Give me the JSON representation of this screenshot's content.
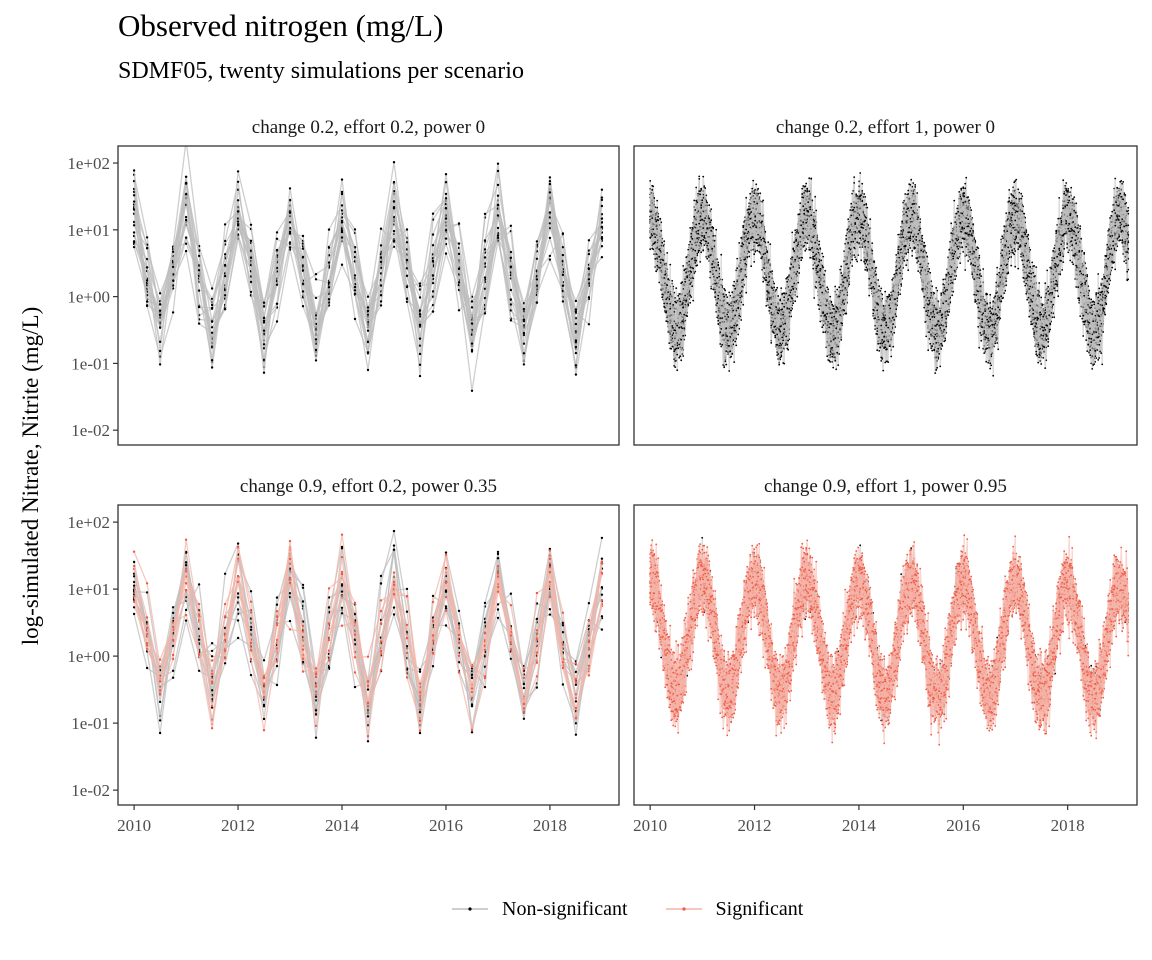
{
  "title": "Observed nitrogen (mg/L)",
  "subtitle": "SDMF05, twenty simulations per scenario",
  "legend": {
    "items": [
      {
        "label": "Non-significant",
        "color": "#000000",
        "line_color": "#bdbdbd"
      },
      {
        "label": "Significant",
        "color": "#ee5a45",
        "line_color": "#f4b5aa"
      }
    ]
  },
  "chart_data": {
    "type": "line",
    "facet_layout": "2x2 grid, shared axes",
    "ylabel": "log-simulated Nitrate, Nitrite (mg/L)",
    "yscale": "log10",
    "ylim": [
      0.006,
      180
    ],
    "yticks": [
      0.01,
      0.1,
      1,
      10,
      100
    ],
    "yticklabels": [
      "1e-02",
      "1e-01",
      "1e+00",
      "1e+01",
      "1e+02"
    ],
    "xlim": [
      "2009-09-10",
      "2019-05-01"
    ],
    "xticks": [
      "2010-01-01",
      "2012-01-01",
      "2014-01-01",
      "2016-01-01",
      "2018-01-01"
    ],
    "xticklabels": [
      "2010",
      "2012",
      "2014",
      "2016",
      "2018"
    ],
    "grid": false,
    "legend_position": "bottom",
    "x_range": [
      "2010-01-01",
      "2019-03-01"
    ],
    "annual_pattern": "seasonal cycle: highs around January (~8-10 mg/L), lows around July (~0.3 mg/L); 20 simulated series per panel",
    "panels": [
      {
        "label": "change 0.2, effort 0.2, power 0",
        "sampling": "quarterly",
        "significant_share": 0
      },
      {
        "label": "change 0.2, effort 1, power 0",
        "sampling": "weekly",
        "significant_share": 0
      },
      {
        "label": "change 0.9, effort 0.2, power 0.35",
        "sampling": "quarterly",
        "significant_share": 0.35
      },
      {
        "label": "change 0.9, effort 1, power 0.95",
        "sampling": "weekly",
        "significant_share": 0.95
      }
    ]
  }
}
